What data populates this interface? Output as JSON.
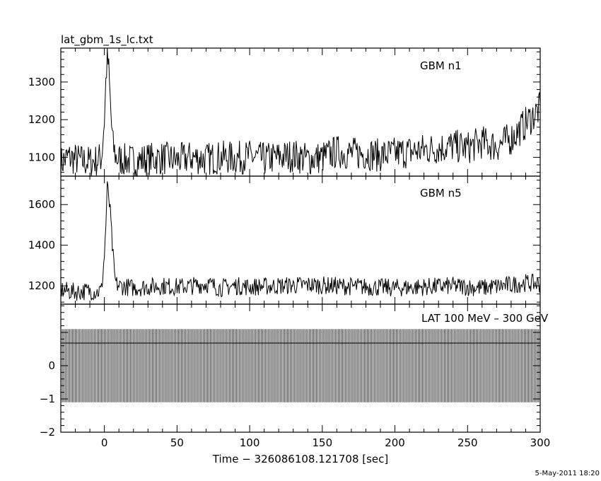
{
  "title": "lat_gbm_1s_lc.txt",
  "footer_date": "5-May-2011 18:20",
  "chart_data": [
    {
      "type": "line",
      "name": "GBM n1",
      "x_range": [
        -30,
        300
      ],
      "ylim": [
        1050,
        1390
      ],
      "yticks": [
        1100,
        1200,
        1300
      ],
      "ytick_labels": [
        "1100",
        "1200",
        "1300"
      ],
      "x": [
        -30,
        -25,
        -20,
        -15,
        -10,
        -5,
        -2,
        0,
        1,
        2,
        3,
        4,
        5,
        6,
        8,
        10,
        15,
        20,
        30,
        40,
        50,
        60,
        70,
        80,
        90,
        100,
        110,
        120,
        130,
        140,
        150,
        160,
        170,
        180,
        190,
        200,
        210,
        220,
        230,
        240,
        250,
        260,
        270,
        280,
        285,
        290,
        295,
        300
      ],
      "values": [
        1085,
        1100,
        1095,
        1090,
        1088,
        1092,
        1100,
        1200,
        1300,
        1370,
        1330,
        1250,
        1180,
        1130,
        1100,
        1095,
        1092,
        1090,
        1095,
        1098,
        1092,
        1100,
        1095,
        1100,
        1098,
        1102,
        1095,
        1100,
        1105,
        1095,
        1100,
        1115,
        1110,
        1110,
        1105,
        1110,
        1115,
        1120,
        1125,
        1130,
        1125,
        1140,
        1130,
        1150,
        1170,
        1190,
        1210,
        1230
      ],
      "noise": 45
    },
    {
      "type": "line",
      "name": "GBM n5",
      "x_range": [
        -30,
        300
      ],
      "ylim": [
        1110,
        1740
      ],
      "yticks": [
        1200,
        1400,
        1600
      ],
      "ytick_labels": [
        "1200",
        "1400",
        "1600"
      ],
      "x": [
        -30,
        -20,
        -10,
        -5,
        -2,
        0,
        1,
        2,
        3,
        4,
        5,
        6,
        7,
        8,
        10,
        15,
        20,
        30,
        40,
        50,
        60,
        70,
        80,
        90,
        100,
        120,
        140,
        160,
        180,
        200,
        220,
        240,
        260,
        280,
        290,
        300
      ],
      "values": [
        1180,
        1170,
        1175,
        1170,
        1180,
        1350,
        1500,
        1680,
        1640,
        1560,
        1450,
        1340,
        1250,
        1210,
        1200,
        1195,
        1190,
        1195,
        1200,
        1195,
        1200,
        1210,
        1190,
        1200,
        1195,
        1200,
        1205,
        1200,
        1195,
        1190,
        1195,
        1200,
        1190,
        1205,
        1215,
        1210
      ],
      "noise": 45
    },
    {
      "type": "bar",
      "name": "LAT 100 MeV – 300 GeV",
      "x_range": [
        -30,
        300
      ],
      "ylim": [
        -2,
        1.85
      ],
      "yticks": [
        -2,
        -1,
        0
      ],
      "ytick_labels": [
        "−2",
        "−1",
        "0"
      ],
      "bin_width_sec": 1,
      "bin_top": 1.1,
      "bin_bottom": -1.1,
      "xticks": [
        0,
        50,
        100,
        150,
        200,
        250,
        300
      ],
      "xtick_labels": [
        "0",
        "50",
        "100",
        "150",
        "200",
        "250",
        "300"
      ],
      "xlabel": "Time − 326086108.121708 [sec]"
    }
  ]
}
